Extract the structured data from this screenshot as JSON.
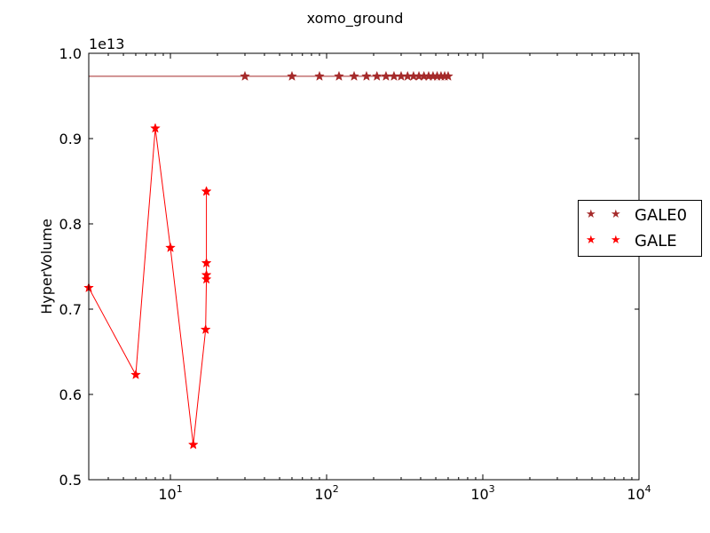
{
  "chart_data": {
    "type": "line",
    "title": "xomo_ground",
    "ylabel": "HyperVolume",
    "xlabel": "",
    "x_scale": "log",
    "xlim": [
      3,
      10000
    ],
    "ylim": [
      0.5,
      1.0
    ],
    "y_offset_label": "1e13",
    "x_ticks": [
      {
        "value": 10,
        "base": "10",
        "exp": "1"
      },
      {
        "value": 100,
        "base": "10",
        "exp": "2"
      },
      {
        "value": 1000,
        "base": "10",
        "exp": "3"
      },
      {
        "value": 10000,
        "base": "10",
        "exp": "4"
      }
    ],
    "y_ticks": [
      "0.5",
      "0.6",
      "0.7",
      "0.8",
      "0.9",
      "1.0"
    ],
    "legend_position": "right",
    "series": [
      {
        "name": "GALE0",
        "color": "#a52a2a",
        "marker": "star",
        "x": [
          1,
          30,
          60,
          90,
          120,
          150,
          180,
          210,
          240,
          270,
          300,
          330,
          360,
          390,
          420,
          450,
          480,
          510,
          540,
          570,
          600
        ],
        "y": [
          0.973,
          0.973,
          0.973,
          0.973,
          0.973,
          0.973,
          0.973,
          0.973,
          0.973,
          0.973,
          0.973,
          0.973,
          0.973,
          0.973,
          0.973,
          0.973,
          0.973,
          0.973,
          0.973,
          0.973,
          0.973
        ]
      },
      {
        "name": "GALE",
        "color": "#ff0000",
        "marker": "star",
        "x": [
          3,
          6,
          8,
          10,
          14,
          16.8,
          17,
          17,
          17,
          17,
          17
        ],
        "y": [
          0.725,
          0.623,
          0.912,
          0.772,
          0.541,
          0.676,
          0.735,
          0.74,
          0.754,
          0.838,
          0.838
        ]
      }
    ]
  }
}
